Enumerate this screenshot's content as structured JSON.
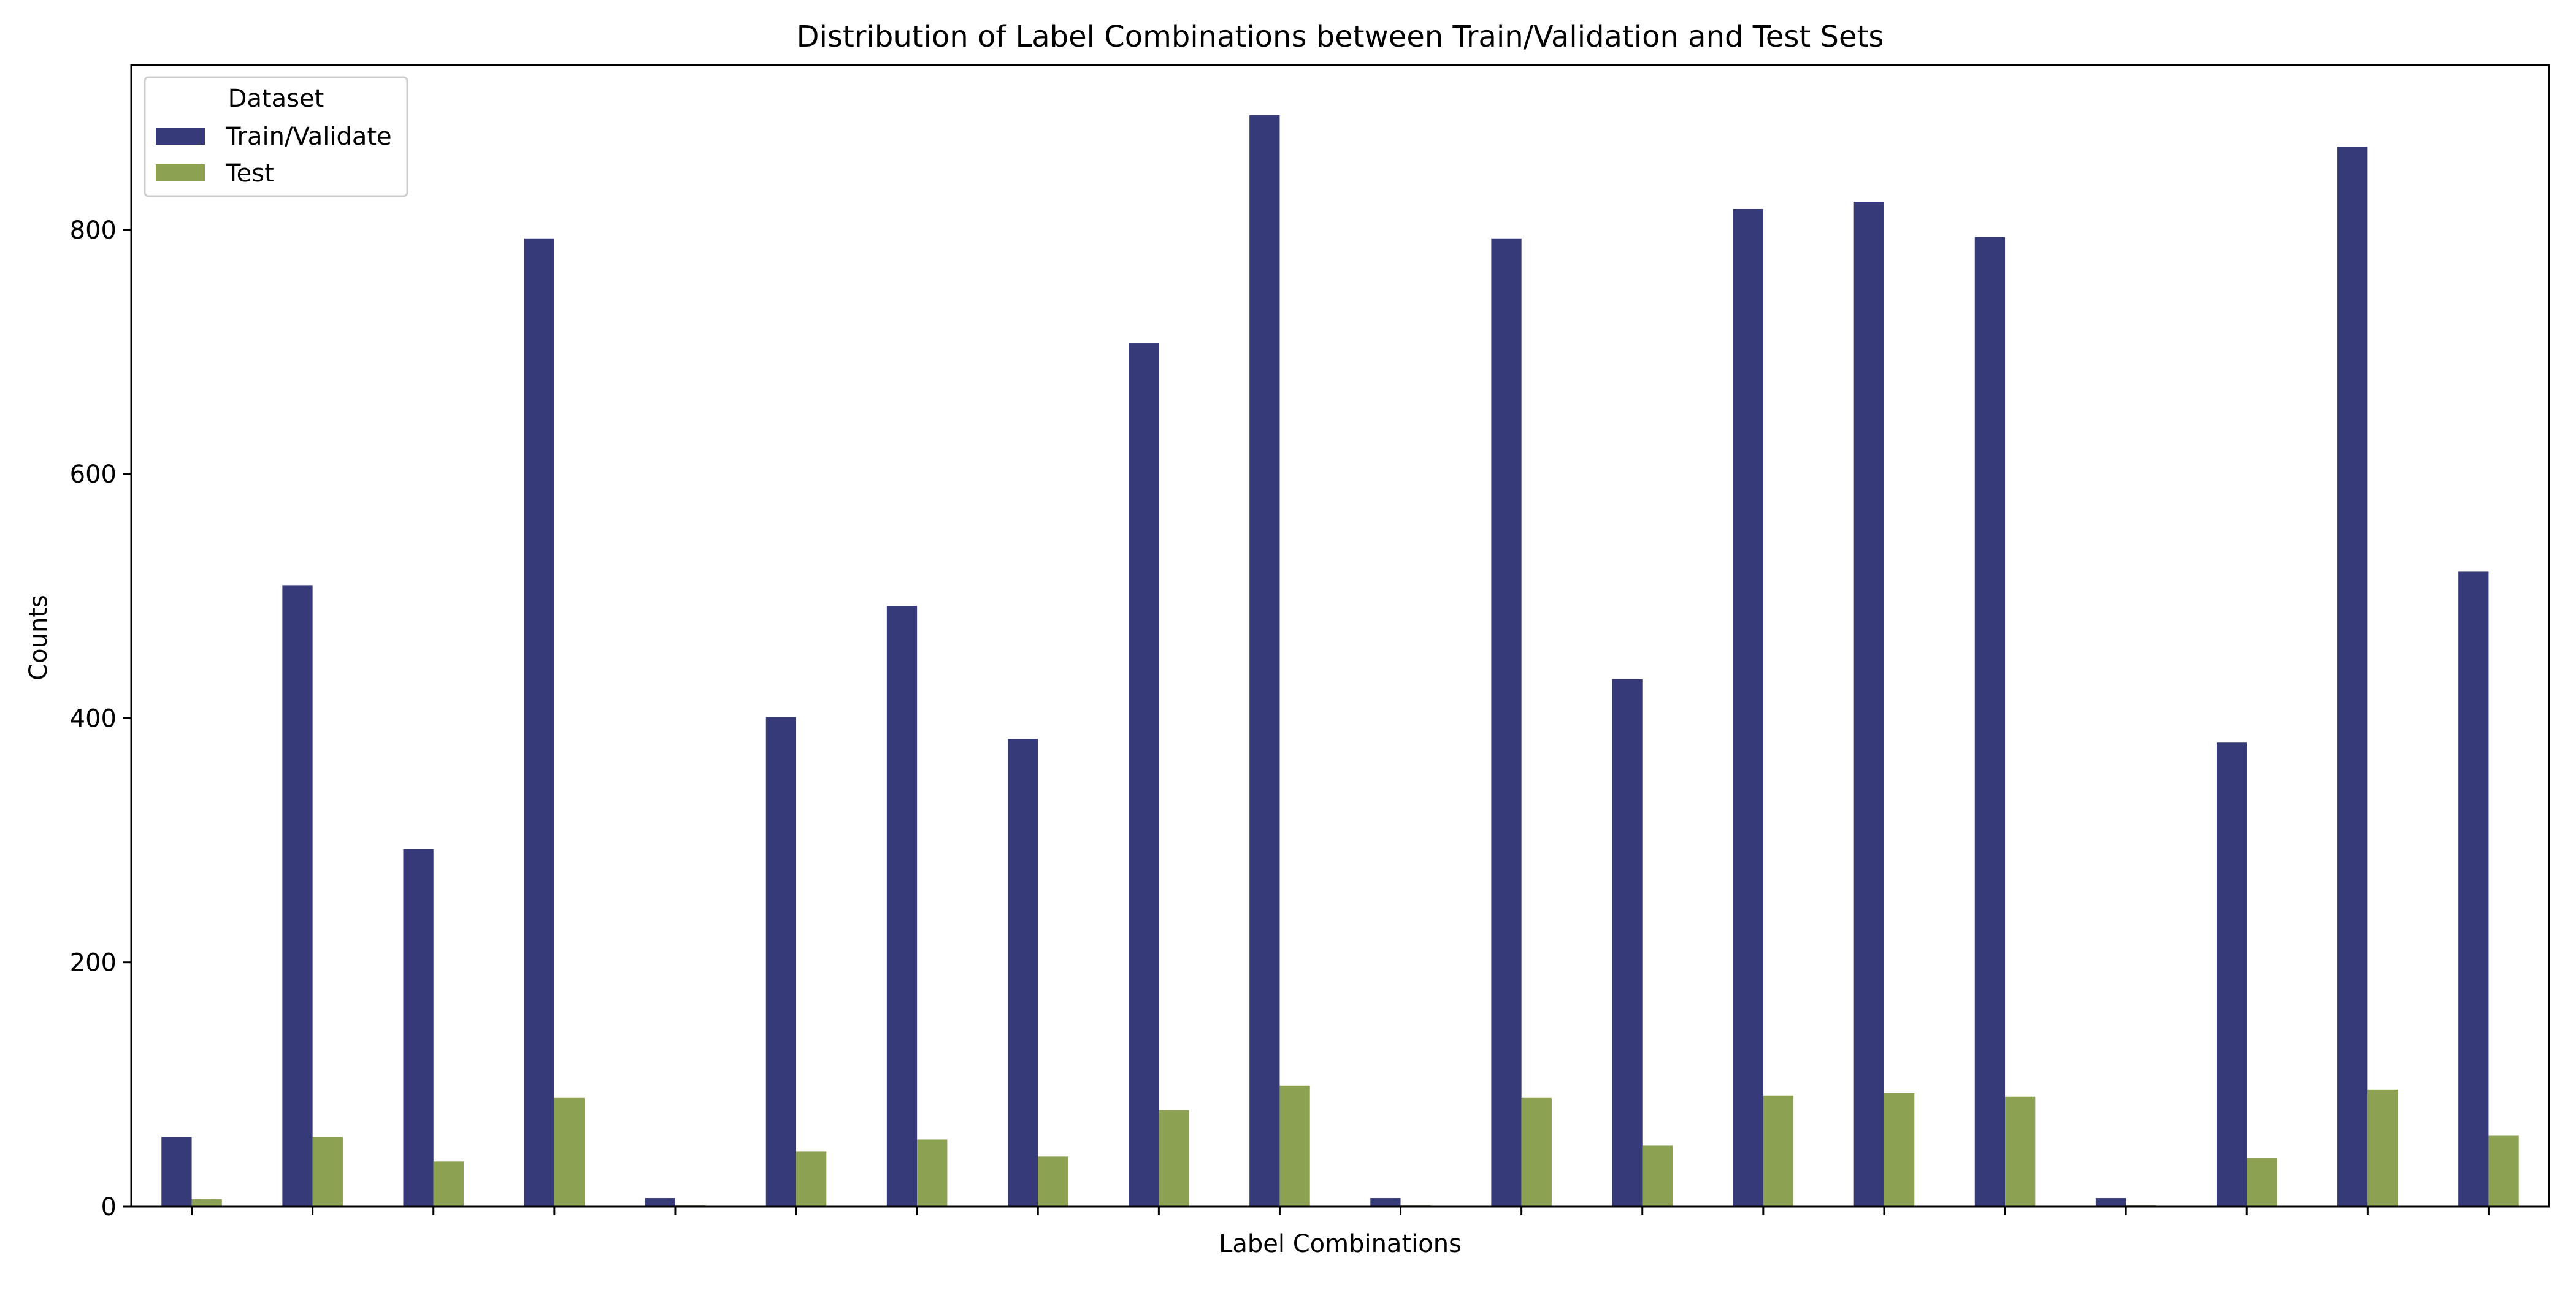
{
  "chart_data": {
    "type": "bar",
    "title": "Distribution of Label Combinations between Train/Validation and Test Sets",
    "xlabel": "Label Combinations",
    "ylabel": "Counts",
    "ylim": [
      0,
      935
    ],
    "yticks": [
      0,
      200,
      400,
      600,
      800
    ],
    "categories": [
      "",
      "",
      "",
      "",
      "",
      "",
      "",
      "",
      "",
      "",
      "",
      "",
      "",
      "",
      "",
      "",
      "",
      "",
      "",
      ""
    ],
    "series": [
      {
        "name": "Train/Validate",
        "color": "#373a78",
        "values": [
          57,
          509,
          293,
          793,
          7,
          401,
          492,
          383,
          707,
          894,
          7,
          793,
          432,
          817,
          823,
          794,
          7,
          380,
          868,
          520
        ]
      },
      {
        "name": "Test",
        "color": "#8da152",
        "values": [
          6,
          57,
          37,
          89,
          1,
          45,
          55,
          41,
          79,
          99,
          1,
          89,
          50,
          91,
          93,
          90,
          1,
          40,
          96,
          58
        ]
      }
    ],
    "legend": {
      "title": "Dataset",
      "position": "top-left"
    },
    "grid": false
  }
}
